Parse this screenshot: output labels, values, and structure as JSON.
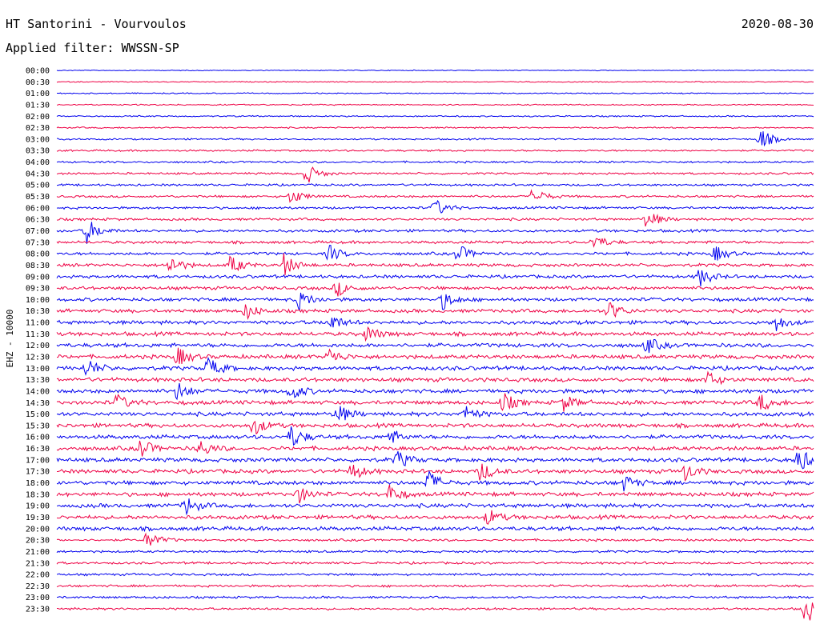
{
  "header": {
    "station": "HT Santorini - Vourvoulos",
    "date": "2020-08-30",
    "filter": "Applied filter: WWSSN-SP"
  },
  "chart_data": {
    "type": "helicorder",
    "channel_label": "EHZ - 10000",
    "row_labels": [
      "00:00",
      "00:30",
      "01:00",
      "01:30",
      "02:00",
      "02:30",
      "03:00",
      "03:30",
      "04:00",
      "04:30",
      "05:00",
      "05:30",
      "06:00",
      "06:30",
      "07:00",
      "07:30",
      "08:00",
      "08:30",
      "09:00",
      "09:30",
      "10:00",
      "10:30",
      "11:00",
      "11:30",
      "12:00",
      "12:30",
      "13:00",
      "13:30",
      "14:00",
      "14:30",
      "15:00",
      "15:30",
      "16:00",
      "16:30",
      "17:00",
      "17:30",
      "18:00",
      "18:30",
      "19:00",
      "19:30",
      "20:00",
      "20:30",
      "21:00",
      "21:30",
      "22:00",
      "22:30",
      "23:00",
      "23:30"
    ],
    "trace_colors": [
      "#0000ee",
      "#ee0044"
    ],
    "events": [
      {
        "row": 6,
        "pos": 0.93,
        "amp": 14
      },
      {
        "row": 9,
        "pos": 0.33,
        "amp": 13
      },
      {
        "row": 11,
        "pos": 0.31,
        "amp": 10
      },
      {
        "row": 11,
        "pos": 0.63,
        "amp": 12
      },
      {
        "row": 12,
        "pos": 0.5,
        "amp": 11
      },
      {
        "row": 13,
        "pos": 0.78,
        "amp": 12
      },
      {
        "row": 14,
        "pos": 0.04,
        "amp": 16
      },
      {
        "row": 15,
        "pos": 0.71,
        "amp": 10
      },
      {
        "row": 16,
        "pos": 0.36,
        "amp": 11
      },
      {
        "row": 16,
        "pos": 0.53,
        "amp": 12
      },
      {
        "row": 16,
        "pos": 0.87,
        "amp": 10
      },
      {
        "row": 17,
        "pos": 0.15,
        "amp": 12
      },
      {
        "row": 17,
        "pos": 0.23,
        "amp": 12
      },
      {
        "row": 17,
        "pos": 0.3,
        "amp": 14
      },
      {
        "row": 18,
        "pos": 0.85,
        "amp": 12
      },
      {
        "row": 19,
        "pos": 0.37,
        "amp": 10
      },
      {
        "row": 20,
        "pos": 0.32,
        "amp": 12
      },
      {
        "row": 20,
        "pos": 0.51,
        "amp": 12
      },
      {
        "row": 21,
        "pos": 0.25,
        "amp": 10
      },
      {
        "row": 21,
        "pos": 0.73,
        "amp": 12
      },
      {
        "row": 22,
        "pos": 0.36,
        "amp": 12
      },
      {
        "row": 22,
        "pos": 0.95,
        "amp": 10
      },
      {
        "row": 23,
        "pos": 0.41,
        "amp": 10
      },
      {
        "row": 24,
        "pos": 0.78,
        "amp": 10
      },
      {
        "row": 25,
        "pos": 0.16,
        "amp": 12
      },
      {
        "row": 25,
        "pos": 0.36,
        "amp": 10
      },
      {
        "row": 26,
        "pos": 0.04,
        "amp": 12
      },
      {
        "row": 26,
        "pos": 0.2,
        "amp": 14
      },
      {
        "row": 27,
        "pos": 0.86,
        "amp": 10
      },
      {
        "row": 28,
        "pos": 0.16,
        "amp": 12
      },
      {
        "row": 28,
        "pos": 0.31,
        "amp": 11
      },
      {
        "row": 29,
        "pos": 0.08,
        "amp": 10
      },
      {
        "row": 29,
        "pos": 0.59,
        "amp": 12
      },
      {
        "row": 29,
        "pos": 0.67,
        "amp": 10
      },
      {
        "row": 29,
        "pos": 0.93,
        "amp": 11
      },
      {
        "row": 30,
        "pos": 0.37,
        "amp": 13
      },
      {
        "row": 30,
        "pos": 0.54,
        "amp": 10
      },
      {
        "row": 31,
        "pos": 0.26,
        "amp": 12
      },
      {
        "row": 32,
        "pos": 0.31,
        "amp": 14
      },
      {
        "row": 32,
        "pos": 0.44,
        "amp": 10
      },
      {
        "row": 33,
        "pos": 0.11,
        "amp": 13
      },
      {
        "row": 33,
        "pos": 0.19,
        "amp": 10
      },
      {
        "row": 34,
        "pos": 0.45,
        "amp": 11
      },
      {
        "row": 34,
        "pos": 0.98,
        "amp": 16
      },
      {
        "row": 35,
        "pos": 0.39,
        "amp": 11
      },
      {
        "row": 35,
        "pos": 0.56,
        "amp": 13
      },
      {
        "row": 35,
        "pos": 0.83,
        "amp": 11
      },
      {
        "row": 36,
        "pos": 0.49,
        "amp": 16
      },
      {
        "row": 36,
        "pos": 0.75,
        "amp": 10
      },
      {
        "row": 37,
        "pos": 0.32,
        "amp": 10
      },
      {
        "row": 37,
        "pos": 0.44,
        "amp": 11
      },
      {
        "row": 38,
        "pos": 0.17,
        "amp": 12
      },
      {
        "row": 39,
        "pos": 0.57,
        "amp": 10
      },
      {
        "row": 41,
        "pos": 0.12,
        "amp": 12
      },
      {
        "row": 47,
        "pos": 0.99,
        "amp": 20
      }
    ]
  }
}
